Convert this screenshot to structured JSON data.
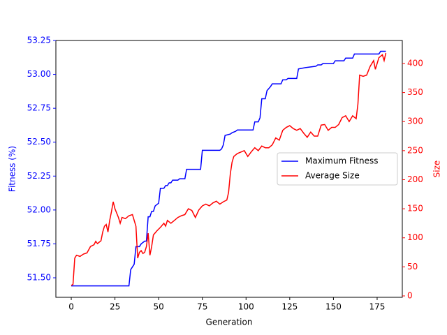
{
  "chart_data": {
    "type": "line",
    "xlabel": "Generation",
    "ylabel": "Fitness (%)",
    "y2label": "Size",
    "xlim": [
      -8.8,
      189.4
    ],
    "xticks": [
      0,
      25,
      50,
      75,
      100,
      125,
      150,
      175
    ],
    "ylim": [
      51.356,
      53.25
    ],
    "yticks": [
      {
        "value": 51.5,
        "label": "51.50"
      },
      {
        "value": 51.75,
        "label": "51.75"
      },
      {
        "value": 52.0,
        "label": "52.00"
      },
      {
        "value": 52.25,
        "label": "52.25"
      },
      {
        "value": 52.5,
        "label": "52.50"
      },
      {
        "value": 52.75,
        "label": "52.75"
      },
      {
        "value": 53.0,
        "label": "53.00"
      },
      {
        "value": 53.25,
        "label": "53.25"
      }
    ],
    "ycolor": "blue",
    "y2lim": [
      -2.4,
      439.6
    ],
    "y2ticks": [
      0,
      50,
      100,
      150,
      200,
      250,
      300,
      350,
      400
    ],
    "y2color": "red",
    "legend": "center right",
    "series": [
      {
        "name": "Maximum Fitness",
        "color": "blue",
        "x": [
          0,
          33,
          34,
          36,
          37,
          39,
          40,
          42,
          43,
          44,
          45,
          46,
          47,
          48,
          50,
          51,
          53,
          54,
          55,
          56,
          57,
          58,
          61,
          62,
          65,
          66,
          74,
          75,
          85,
          86,
          87,
          88,
          91,
          92,
          94,
          95,
          104,
          105,
          107,
          108,
          109,
          111,
          112,
          114,
          115,
          120,
          121,
          123,
          124,
          129,
          130,
          134,
          140,
          141,
          143,
          144,
          150,
          151,
          156,
          157,
          161,
          162,
          176,
          177,
          180
        ],
        "values": [
          51.44,
          51.44,
          51.56,
          51.6,
          51.73,
          51.73,
          51.75,
          51.77,
          51.77,
          51.95,
          51.95,
          51.99,
          51.99,
          52.03,
          52.05,
          52.16,
          52.16,
          52.18,
          52.18,
          52.2,
          52.2,
          52.22,
          52.22,
          52.23,
          52.23,
          52.3,
          52.3,
          52.44,
          52.44,
          52.45,
          52.48,
          52.55,
          52.56,
          52.57,
          52.58,
          52.59,
          52.59,
          52.65,
          52.65,
          52.68,
          52.82,
          52.82,
          52.88,
          52.91,
          52.93,
          52.93,
          52.96,
          52.96,
          52.97,
          52.97,
          53.04,
          53.05,
          53.06,
          53.07,
          53.07,
          53.08,
          53.08,
          53.1,
          53.1,
          53.12,
          53.12,
          53.15,
          53.15,
          53.17,
          53.17
        ]
      },
      {
        "name": "Average Size",
        "color": "red",
        "axis": "y2",
        "x": [
          0,
          1,
          2,
          3,
          5,
          7,
          9,
          11,
          13,
          14,
          15,
          17,
          18,
          19,
          20,
          21,
          22,
          23,
          24,
          25,
          27,
          28,
          29,
          31,
          33,
          35,
          36,
          37,
          38,
          39,
          40,
          41,
          42,
          43,
          44,
          45,
          46,
          47,
          49,
          51,
          53,
          54,
          55,
          57,
          59,
          61,
          63,
          65,
          67,
          69,
          71,
          73,
          75,
          77,
          79,
          81,
          83,
          85,
          87,
          89,
          90,
          91,
          92,
          93,
          95,
          99,
          101,
          103,
          105,
          107,
          109,
          111,
          113,
          115,
          117,
          119,
          121,
          123,
          125,
          127,
          129,
          131,
          133,
          135,
          137,
          139,
          141,
          143,
          145,
          147,
          149,
          151,
          153,
          155,
          157,
          159,
          161,
          163,
          164,
          165,
          167,
          169,
          171,
          173,
          174,
          176,
          178,
          179,
          180
        ],
        "values": [
          18,
          20,
          65,
          70,
          68,
          72,
          74,
          85,
          88,
          94,
          90,
          95,
          110,
          120,
          123,
          110,
          130,
          145,
          162,
          150,
          135,
          125,
          135,
          133,
          138,
          140,
          130,
          120,
          65,
          75,
          78,
          73,
          75,
          85,
          108,
          70,
          85,
          105,
          112,
          118,
          125,
          120,
          130,
          125,
          130,
          135,
          138,
          140,
          150,
          147,
          135,
          148,
          155,
          158,
          155,
          160,
          163,
          158,
          162,
          165,
          178,
          210,
          230,
          240,
          245,
          250,
          240,
          248,
          255,
          250,
          258,
          255,
          255,
          260,
          272,
          268,
          285,
          290,
          293,
          288,
          285,
          288,
          280,
          273,
          282,
          275,
          275,
          294,
          295,
          285,
          290,
          290,
          295,
          307,
          310,
          300,
          310,
          305,
          330,
          380,
          378,
          380,
          395,
          405,
          390,
          410,
          415,
          405,
          418
        ]
      }
    ]
  }
}
